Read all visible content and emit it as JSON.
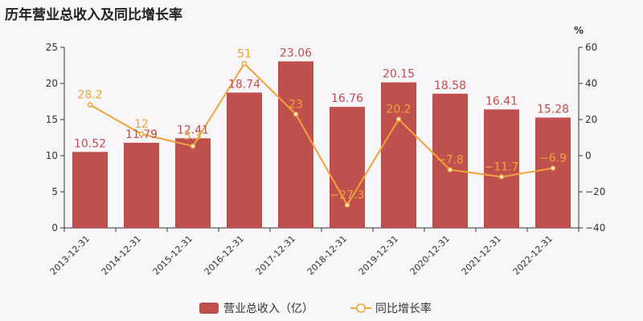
{
  "title": "历年营业总收入及同比增长率",
  "colors": {
    "bar": "#c0504d",
    "line": "#f0a33a",
    "axis": "#333333",
    "background": "#f8f6f9"
  },
  "chart_data": {
    "type": "bar",
    "categories": [
      "2013-12-31",
      "2014-12-31",
      "2015-12-31",
      "2016-12-31",
      "2017-12-31",
      "2018-12-31",
      "2019-12-31",
      "2020-12-31",
      "2021-12-31",
      "2022-12-31"
    ],
    "series": [
      {
        "name": "营业总收入（亿）",
        "type": "bar",
        "axis": "left",
        "values": [
          10.52,
          11.79,
          12.41,
          18.74,
          23.06,
          16.76,
          20.15,
          18.58,
          16.41,
          15.28
        ],
        "labels": [
          "10.52",
          "11.79",
          "12.41",
          "18.74",
          "23.06",
          "16.76",
          "20.15",
          "18.58",
          "16.41",
          "15.28"
        ]
      },
      {
        "name": "同比增长率",
        "type": "line",
        "axis": "right",
        "values": [
          28.2,
          12,
          5.3,
          51,
          23,
          -27.3,
          20.2,
          -7.8,
          -11.7,
          -6.9
        ],
        "labels": [
          "28.2",
          "12",
          "5.3",
          "51",
          "23",
          "−27.3",
          "20.2",
          "−7.8",
          "−11.7",
          "−6.9"
        ]
      }
    ],
    "y_left": {
      "ylim": [
        0,
        25
      ],
      "ticks": [
        "0",
        "5",
        "10",
        "15",
        "20",
        "25"
      ]
    },
    "y_right": {
      "ylim": [
        -40,
        60
      ],
      "ticks": [
        "−40",
        "−20",
        "0",
        "20",
        "40",
        "60"
      ],
      "unit": "%"
    },
    "legend": {
      "position": "bottom-center"
    },
    "grid": false
  }
}
